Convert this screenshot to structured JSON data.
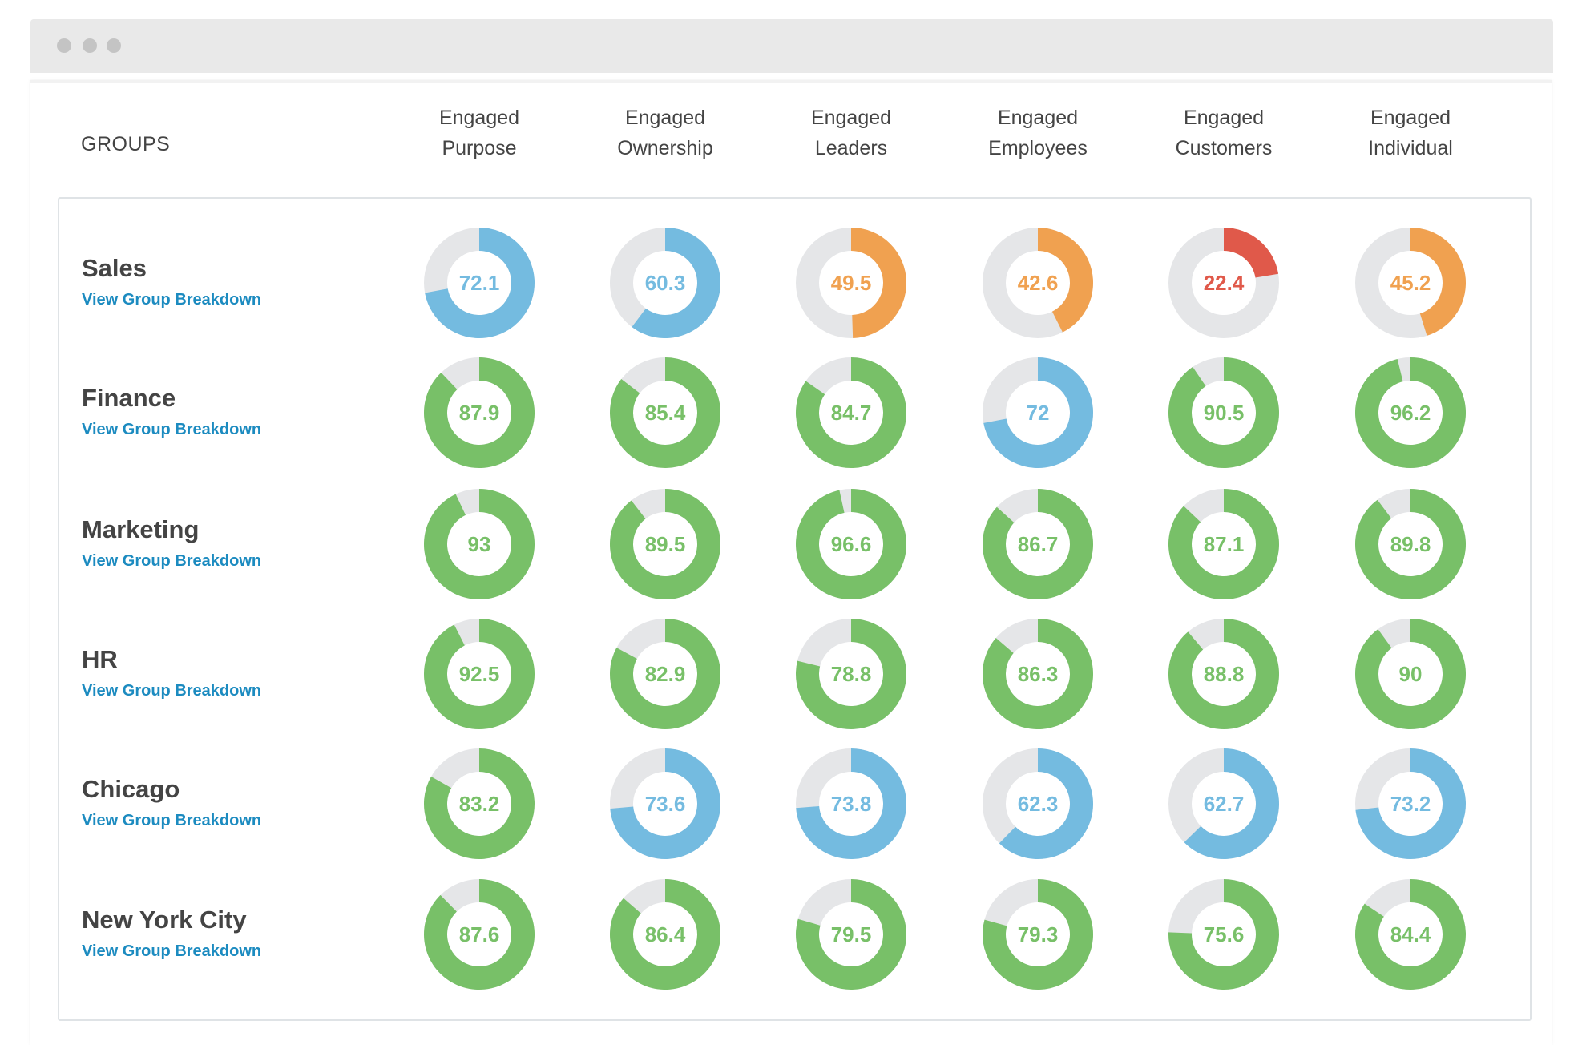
{
  "window": {
    "controls": [
      "close",
      "minimize",
      "maximize"
    ]
  },
  "header": {
    "groups_label": "GROUPS",
    "columns": [
      {
        "line1": "Engaged",
        "line2": "Purpose"
      },
      {
        "line1": "Engaged",
        "line2": "Ownership"
      },
      {
        "line1": "Engaged",
        "line2": "Leaders"
      },
      {
        "line1": "Engaged",
        "line2": "Employees"
      },
      {
        "line1": "Engaged",
        "line2": "Customers"
      },
      {
        "line1": "Engaged",
        "line2": "Individual"
      }
    ]
  },
  "link_label": "View Group Breakdown",
  "colors": {
    "green": "#78c068",
    "blue": "#74bbe0",
    "orange": "#f0a150",
    "red": "#e0594a",
    "track": "#e5e6e8"
  },
  "chart_data": {
    "type": "donut-grid",
    "max": 100,
    "categories": [
      "Engaged Purpose",
      "Engaged Ownership",
      "Engaged Leaders",
      "Engaged Employees",
      "Engaged Customers",
      "Engaged Individual"
    ],
    "rows": [
      {
        "name": "Sales",
        "values": [
          72.1,
          60.3,
          49.5,
          42.6,
          22.4,
          45.2
        ],
        "tones": [
          "blue",
          "blue",
          "orange",
          "orange",
          "red",
          "orange"
        ]
      },
      {
        "name": "Finance",
        "values": [
          87.9,
          85.4,
          84.7,
          72,
          90.5,
          96.2
        ],
        "tones": [
          "green",
          "green",
          "green",
          "blue",
          "green",
          "green"
        ]
      },
      {
        "name": "Marketing",
        "values": [
          93,
          89.5,
          96.6,
          86.7,
          87.1,
          89.8
        ],
        "tones": [
          "green",
          "green",
          "green",
          "green",
          "green",
          "green"
        ]
      },
      {
        "name": "HR",
        "values": [
          92.5,
          82.9,
          78.8,
          86.3,
          88.8,
          90
        ],
        "tones": [
          "green",
          "green",
          "green",
          "green",
          "green",
          "green"
        ]
      },
      {
        "name": "Chicago",
        "values": [
          83.2,
          73.6,
          73.8,
          62.3,
          62.7,
          73.2
        ],
        "tones": [
          "green",
          "blue",
          "blue",
          "blue",
          "blue",
          "blue"
        ]
      },
      {
        "name": "New York City",
        "values": [
          87.6,
          86.4,
          79.5,
          79.3,
          75.6,
          84.4
        ],
        "tones": [
          "green",
          "green",
          "green",
          "green",
          "green",
          "green"
        ]
      }
    ]
  }
}
